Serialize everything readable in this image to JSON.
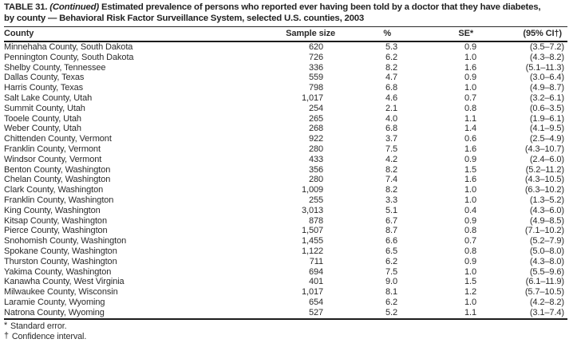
{
  "title": {
    "line1_prefix": "TABLE 31. ",
    "line1_continued": "(Continued)",
    "line1_rest": " Estimated prevalence of persons who reported ever having been told by a doctor that they have diabetes,",
    "line2": "by county — Behavioral Risk Factor Surveillance System, selected U.S. counties, 2003"
  },
  "table": {
    "columns": [
      "County",
      "Sample size",
      "%",
      "SE*",
      "(95% CI†)"
    ],
    "rows": [
      [
        "Minnehaha County, South Dakota",
        "620",
        "5.3",
        "0.9",
        "(3.5–7.2)"
      ],
      [
        "Pennington County, South Dakota",
        "726",
        "6.2",
        "1.0",
        "(4.3–8.2)"
      ],
      [
        "Shelby County, Tennessee",
        "336",
        "8.2",
        "1.6",
        "(5.1–11.3)"
      ],
      [
        "Dallas County, Texas",
        "559",
        "4.7",
        "0.9",
        "(3.0–6.4)"
      ],
      [
        "Harris County, Texas",
        "798",
        "6.8",
        "1.0",
        "(4.9–8.7)"
      ],
      [
        "Salt Lake County, Utah",
        "1,017",
        "4.6",
        "0.7",
        "(3.2–6.1)"
      ],
      [
        "Summit County, Utah",
        "254",
        "2.1",
        "0.8",
        "(0.6–3.5)"
      ],
      [
        "Tooele County, Utah",
        "265",
        "4.0",
        "1.1",
        "(1.9–6.1)"
      ],
      [
        "Weber County, Utah",
        "268",
        "6.8",
        "1.4",
        "(4.1–9.5)"
      ],
      [
        "Chittenden County, Vermont",
        "922",
        "3.7",
        "0.6",
        "(2.5–4.9)"
      ],
      [
        "Franklin County, Vermont",
        "280",
        "7.5",
        "1.6",
        "(4.3–10.7)"
      ],
      [
        "Windsor County, Vermont",
        "433",
        "4.2",
        "0.9",
        "(2.4–6.0)"
      ],
      [
        "Benton County, Washington",
        "356",
        "8.2",
        "1.5",
        "(5.2–11.2)"
      ],
      [
        "Chelan County, Washington",
        "280",
        "7.4",
        "1.6",
        "(4.3–10.5)"
      ],
      [
        "Clark County, Washington",
        "1,009",
        "8.2",
        "1.0",
        "(6.3–10.2)"
      ],
      [
        "Franklin County, Washington",
        "255",
        "3.3",
        "1.0",
        "(1.3–5.2)"
      ],
      [
        "King County, Washington",
        "3,013",
        "5.1",
        "0.4",
        "(4.3–6.0)"
      ],
      [
        "Kitsap County, Washington",
        "878",
        "6.7",
        "0.9",
        "(4.9–8.5)"
      ],
      [
        "Pierce County, Washington",
        "1,507",
        "8.7",
        "0.8",
        "(7.1–10.2)"
      ],
      [
        "Snohomish County, Washington",
        "1,455",
        "6.6",
        "0.7",
        "(5.2–7.9)"
      ],
      [
        "Spokane County, Washington",
        "1,122",
        "6.5",
        "0.8",
        "(5.0–8.0)"
      ],
      [
        "Thurston County, Washington",
        "711",
        "6.2",
        "0.9",
        "(4.3–8.0)"
      ],
      [
        "Yakima County, Washington",
        "694",
        "7.5",
        "1.0",
        "(5.5–9.6)"
      ],
      [
        "Kanawha County, West Virginia",
        "401",
        "9.0",
        "1.5",
        "(6.1–11.9)"
      ],
      [
        "Milwaukee County, Wisconsin",
        "1,017",
        "8.1",
        "1.2",
        "(5.7–10.5)"
      ],
      [
        "Laramie County, Wyoming",
        "654",
        "6.2",
        "1.0",
        "(4.2–8.2)"
      ],
      [
        "Natrona County, Wyoming",
        "527",
        "5.2",
        "1.1",
        "(3.1–7.4)"
      ]
    ]
  },
  "footnotes": [
    {
      "marker": "*",
      "text": "Standard error."
    },
    {
      "marker": "†",
      "text": "Confidence interval."
    }
  ],
  "colors": {
    "background": "#ffffff",
    "text": "#2a2a2a",
    "rule": "#1c1c1c"
  }
}
